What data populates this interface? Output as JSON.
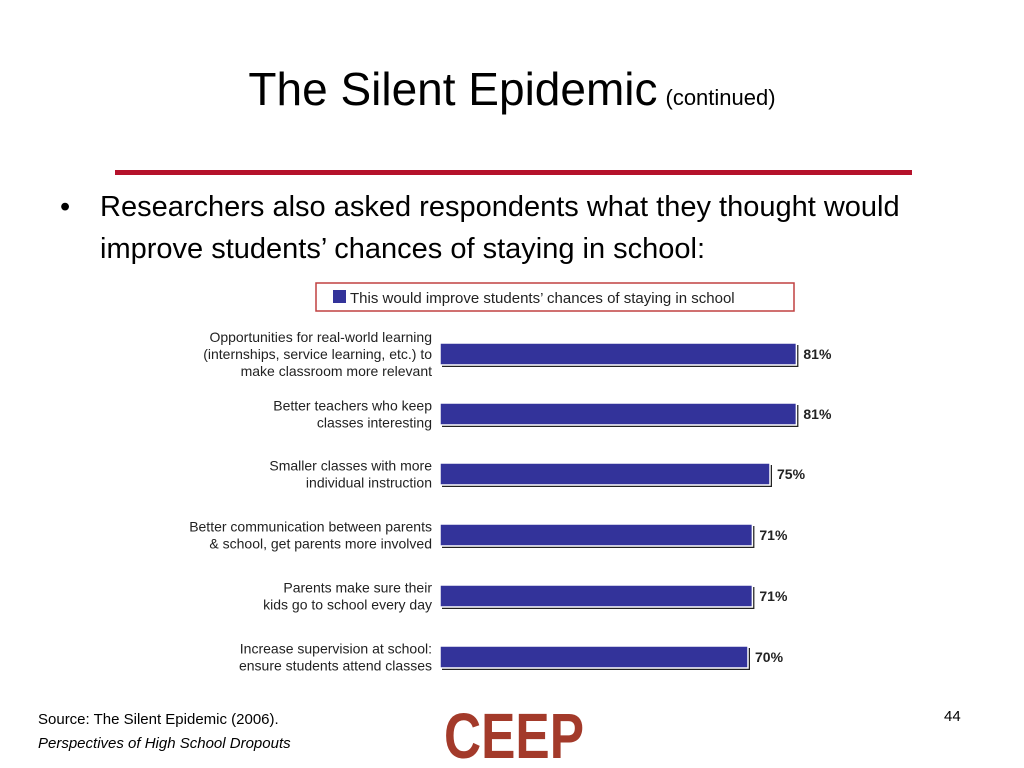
{
  "slide": {
    "title": "The Silent Epidemic",
    "title_suffix": "(continued)",
    "bullet": "Researchers also asked respondents what they thought would improve students’ chances of staying in school:",
    "source_line1": "Source: The Silent Epidemic (2006).",
    "source_line2": "Perspectives of High School Dropouts",
    "page_number": "44",
    "logo_text": "CEEP",
    "accent_color": "#b5122b",
    "logo_color": "#a33a2a"
  },
  "chart_data": {
    "type": "bar",
    "orientation": "horizontal",
    "categories": [
      [
        "Opportunities for real-world learning",
        "(internships, service learning, etc.) to",
        "make classroom more relevant"
      ],
      [
        "Better teachers who keep",
        "classes interesting"
      ],
      [
        "Smaller classes with more",
        "individual instruction"
      ],
      [
        "Better communication between parents",
        "& school, get parents more involved"
      ],
      [
        "Parents make sure their",
        "kids go to school every day"
      ],
      [
        "Increase supervision at school:",
        "ensure students attend classes"
      ]
    ],
    "series": [
      {
        "name": "This would improve students’ chances of staying in school",
        "values": [
          81,
          81,
          75,
          71,
          71,
          70
        ],
        "color": "#33339a"
      }
    ],
    "value_labels": [
      "81%",
      "81%",
      "75%",
      "71%",
      "71%",
      "70%"
    ],
    "xlim": [
      0,
      100
    ],
    "grid": false,
    "legend_position": "top"
  }
}
